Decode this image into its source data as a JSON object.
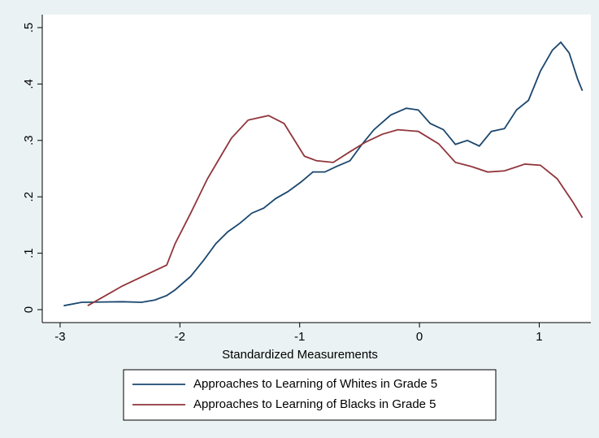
{
  "chart_data": {
    "type": "line",
    "x_label": "Standardized Measurements",
    "xlim": [
      -3.149,
      1.431
    ],
    "xticks": [
      -3,
      -2,
      -1,
      0,
      1
    ],
    "ylim": [
      -0.023,
      0.523
    ],
    "yticks": [
      0,
      {
        "value": 0.1,
        "label": ".1"
      },
      {
        "value": 0.2,
        "label": ".2"
      },
      {
        "value": 0.3,
        "label": ".3"
      },
      {
        "value": 0.4,
        "label": ".4"
      },
      {
        "value": 0.5,
        "label": ".5"
      }
    ],
    "grid": false,
    "legend": "bottom",
    "series": [
      {
        "name": "Approaches to Learning of Whites in Grade 5",
        "color": "#1a476f",
        "x": [
          -2.97,
          -2.82,
          -2.48,
          -2.32,
          -2.21,
          -2.11,
          -2.04,
          -1.91,
          -1.8,
          -1.7,
          -1.6,
          -1.5,
          -1.4,
          -1.3,
          -1.2,
          -1.1,
          -0.99,
          -0.89,
          -0.79,
          -0.69,
          -0.58,
          -0.48,
          -0.38,
          -0.24,
          -0.11,
          -0.01,
          0.09,
          0.2,
          0.3,
          0.4,
          0.5,
          0.6,
          0.71,
          0.81,
          0.91,
          1.01,
          1.11,
          1.18,
          1.25,
          1.32,
          1.36
        ],
        "values": [
          0.007,
          0.013,
          0.014,
          0.013,
          0.017,
          0.025,
          0.035,
          0.059,
          0.088,
          0.117,
          0.138,
          0.153,
          0.171,
          0.18,
          0.197,
          0.209,
          0.226,
          0.244,
          0.244,
          0.254,
          0.264,
          0.293,
          0.319,
          0.345,
          0.357,
          0.354,
          0.33,
          0.319,
          0.293,
          0.3,
          0.29,
          0.316,
          0.321,
          0.354,
          0.371,
          0.423,
          0.46,
          0.474,
          0.455,
          0.409,
          0.388
        ]
      },
      {
        "name": "Approaches to Learning of Blacks in Grade 5",
        "color": "#90353b",
        "x": [
          -2.77,
          -2.62,
          -2.48,
          -2.31,
          -2.11,
          -2.04,
          -1.91,
          -1.77,
          -1.67,
          -1.57,
          -1.43,
          -1.26,
          -1.13,
          -0.96,
          -0.86,
          -0.72,
          -0.58,
          -0.45,
          -0.31,
          -0.18,
          -0.01,
          0.16,
          0.3,
          0.43,
          0.57,
          0.71,
          0.88,
          1.01,
          1.15,
          1.28,
          1.36
        ],
        "values": [
          0.007,
          0.025,
          0.042,
          0.059,
          0.079,
          0.117,
          0.171,
          0.232,
          0.268,
          0.304,
          0.336,
          0.344,
          0.33,
          0.272,
          0.264,
          0.261,
          0.28,
          0.297,
          0.311,
          0.319,
          0.316,
          0.294,
          0.261,
          0.254,
          0.244,
          0.246,
          0.258,
          0.256,
          0.232,
          0.191,
          0.163
        ]
      }
    ]
  }
}
